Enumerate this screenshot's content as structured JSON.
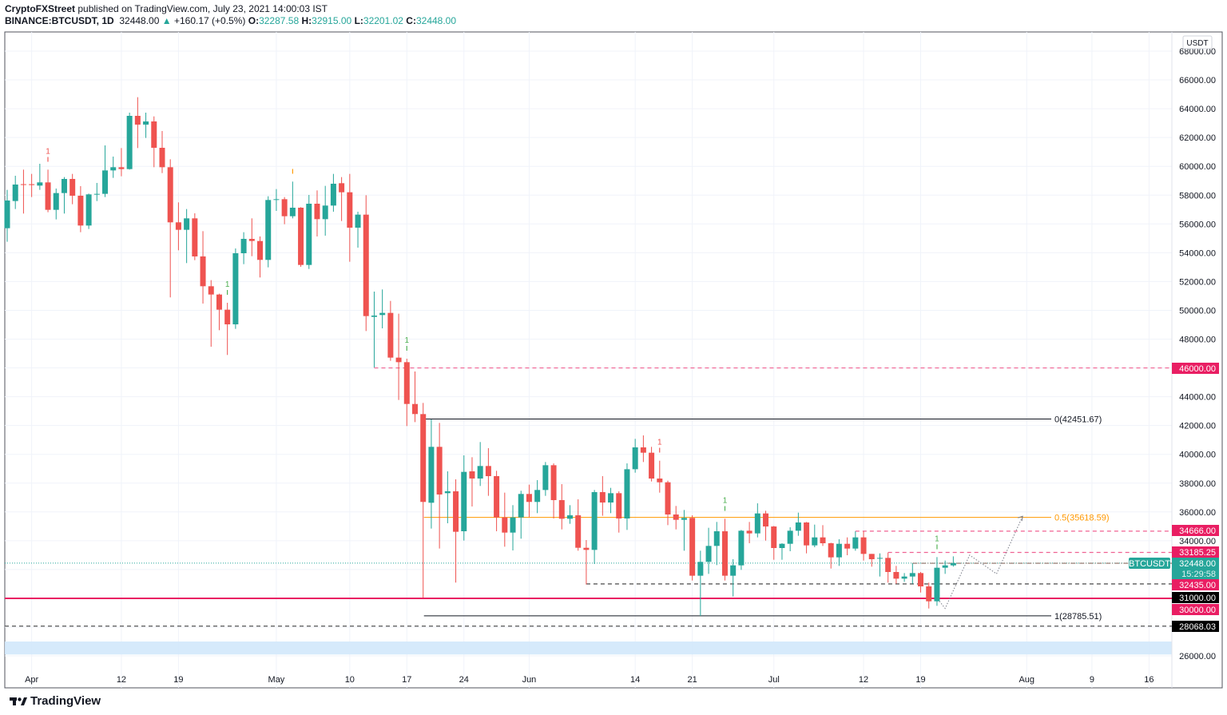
{
  "header": {
    "author": "CryptoFXStreet",
    "published": "published on TradingView.com, July 23, 2021 14:00:03 IST",
    "symbol": "BINANCE:BTCUSDT, 1D",
    "last": "32448.00",
    "change": "+160.17 (+0.5%)",
    "o_label": "O:",
    "o": "32287.58",
    "h_label": "H:",
    "h": "32915.00",
    "l_label": "L:",
    "l": "32201.02",
    "c_label": "C:",
    "c": "32448.00"
  },
  "footer": {
    "logo": "TradingView"
  },
  "colors": {
    "up": "#26a69a",
    "down": "#ef5350",
    "level": "#e91e63",
    "fib_mid": "#ff9800",
    "band": "#d1e8fb"
  },
  "chart_data": {
    "type": "candlestick",
    "currency": "USDT",
    "ylim": [
      25000,
      69000
    ],
    "y_ticks": [
      "68000.00",
      "66000.00",
      "64000.00",
      "62000.00",
      "60000.00",
      "58000.00",
      "56000.00",
      "54000.00",
      "52000.00",
      "50000.00",
      "48000.00",
      "44000.00",
      "42000.00",
      "40000.00",
      "38000.00",
      "36000.00",
      "34000.00",
      "26000.00"
    ],
    "x_ticks": [
      {
        "label": "Apr",
        "index": 3
      },
      {
        "label": "12",
        "index": 14
      },
      {
        "label": "19",
        "index": 21
      },
      {
        "label": "May",
        "index": 33
      },
      {
        "label": "10",
        "index": 42
      },
      {
        "label": "17",
        "index": 49
      },
      {
        "label": "24",
        "index": 56
      },
      {
        "label": "Jun",
        "index": 64
      },
      {
        "label": "14",
        "index": 77
      },
      {
        "label": "21",
        "index": 84
      },
      {
        "label": "Jul",
        "index": 94
      },
      {
        "label": "12",
        "index": 105
      },
      {
        "label": "19",
        "index": 112
      },
      {
        "label": "Aug",
        "index": 125
      },
      {
        "label": "9",
        "index": 133
      },
      {
        "label": "16",
        "index": 140
      }
    ],
    "candles_ohlc": [
      [
        55703,
        58366,
        54760,
        57627
      ],
      [
        57590,
        59346,
        57035,
        58736
      ],
      [
        58760,
        59771,
        56720,
        58720
      ],
      [
        58760,
        59475,
        57867,
        58700
      ],
      [
        58662,
        60178,
        58366,
        58884
      ],
      [
        58884,
        59771,
        56813,
        56979
      ],
      [
        56979,
        58458,
        56314,
        58144
      ],
      [
        58144,
        59254,
        56720,
        59124
      ],
      [
        59124,
        59475,
        57368,
        57959
      ],
      [
        57959,
        58625,
        55426,
        55888
      ],
      [
        55888,
        58107,
        55648,
        58052
      ],
      [
        58052,
        58847,
        57590,
        58089
      ],
      [
        58089,
        61454,
        57867,
        59716
      ],
      [
        59716,
        60677,
        59198,
        59938
      ],
      [
        59938,
        61269,
        59309,
        59808
      ],
      [
        59808,
        63728,
        59771,
        63506
      ],
      [
        63506,
        64801,
        61269,
        62896
      ],
      [
        62896,
        63728,
        61972,
        63118
      ],
      [
        63118,
        63469,
        59938,
        61287
      ],
      [
        61287,
        62452,
        59531,
        59938
      ],
      [
        59938,
        60492,
        50896,
        56110
      ],
      [
        56110,
        57497,
        54169,
        55592
      ],
      [
        55592,
        57034,
        53281,
        56387
      ],
      [
        56387,
        56738,
        53484,
        53743
      ],
      [
        53743,
        55499,
        50470,
        51672
      ],
      [
        51672,
        52097,
        47474,
        51098
      ],
      [
        51098,
        51154,
        48620,
        50044
      ],
      [
        50044,
        50525,
        46900,
        49027
      ],
      [
        49027,
        54297,
        48712,
        53964
      ],
      [
        53964,
        55425,
        53206,
        54963
      ],
      [
        54963,
        56387,
        53761,
        54815
      ],
      [
        54815,
        55129,
        52282,
        53502
      ],
      [
        53502,
        57922,
        52984,
        57663
      ],
      [
        57663,
        58421,
        56904,
        57718
      ],
      [
        57718,
        57866,
        55980,
        56535
      ],
      [
        56535,
        58939,
        56387,
        57127
      ],
      [
        57127,
        57164,
        53022,
        53151
      ],
      [
        53151,
        58014,
        52873,
        57404
      ],
      [
        57404,
        58328,
        55129,
        56331
      ],
      [
        56331,
        58643,
        55185,
        57275
      ],
      [
        57275,
        59475,
        56849,
        58791
      ],
      [
        58828,
        59253,
        56202,
        58199
      ],
      [
        58199,
        59475,
        53373,
        55740
      ],
      [
        55740,
        56849,
        54353,
        56646
      ],
      [
        56646,
        57996,
        48565,
        49600
      ],
      [
        49544,
        51301,
        46031,
        49637
      ],
      [
        49674,
        51449,
        48749,
        49822
      ],
      [
        49822,
        50654,
        46493,
        46715
      ],
      [
        46715,
        49766,
        43775,
        46400
      ],
      [
        46400,
        46641,
        41963,
        43497
      ],
      [
        43497,
        45753,
        42240,
        42795
      ],
      [
        42795,
        43571,
        30036,
        36693
      ],
      [
        36637,
        42425,
        34843,
        40520
      ],
      [
        40520,
        42185,
        33456,
        37210
      ],
      [
        37303,
        38819,
        35213,
        37432
      ],
      [
        37432,
        38264,
        31090,
        34621
      ],
      [
        34658,
        39929,
        34011,
        38782
      ],
      [
        38819,
        39799,
        36378,
        38320
      ],
      [
        38320,
        40853,
        37802,
        39189
      ],
      [
        39189,
        40428,
        37118,
        38486
      ],
      [
        38486,
        38856,
        34658,
        35620
      ],
      [
        35620,
        37340,
        33585,
        34565
      ],
      [
        34565,
        36471,
        33326,
        35620
      ],
      [
        35620,
        37470,
        34141,
        37248
      ],
      [
        37248,
        37895,
        35638,
        36693
      ],
      [
        36693,
        38209,
        35916,
        37525
      ],
      [
        37523,
        39465,
        37116,
        39243
      ],
      [
        39243,
        39370,
        35545,
        36820
      ],
      [
        36820,
        37930,
        34786,
        35526
      ],
      [
        35526,
        36469,
        35175,
        35766
      ],
      [
        35766,
        36876,
        33307,
        33510
      ],
      [
        33510,
        34047,
        30959,
        33363
      ],
      [
        33363,
        37523,
        32383,
        37375
      ],
      [
        37375,
        38485,
        35730,
        36654
      ],
      [
        36654,
        37671,
        35915,
        37301
      ],
      [
        37301,
        37430,
        34565,
        35545
      ],
      [
        35545,
        39372,
        34750,
        38965
      ],
      [
        38965,
        41073,
        38725,
        40482
      ],
      [
        40482,
        41314,
        39465,
        40112
      ],
      [
        40112,
        40519,
        38115,
        38318
      ],
      [
        38318,
        39557,
        37338,
        38059
      ],
      [
        38059,
        38170,
        35083,
        35822
      ],
      [
        35822,
        36414,
        34786,
        35452
      ],
      [
        35452,
        36136,
        33307,
        35582
      ],
      [
        35582,
        35766,
        31237,
        31570
      ],
      [
        31570,
        33307,
        28777,
        32531
      ],
      [
        32531,
        34898,
        31698,
        33640
      ],
      [
        33640,
        35305,
        32309,
        34657
      ],
      [
        34657,
        35526,
        31237,
        31570
      ],
      [
        31569,
        32715,
        30127,
        32290
      ],
      [
        32290,
        34749,
        31976,
        34694
      ],
      [
        34694,
        35304,
        33825,
        34509
      ],
      [
        34509,
        36598,
        34231,
        35896
      ],
      [
        35896,
        36080,
        34009,
        34989
      ],
      [
        34989,
        35026,
        32678,
        33492
      ],
      [
        33492,
        33825,
        32678,
        33787
      ],
      [
        33787,
        34934,
        33270,
        34694
      ],
      [
        34694,
        35951,
        34342,
        35267
      ],
      [
        35267,
        35304,
        33122,
        33677
      ],
      [
        33677,
        35119,
        33547,
        34231
      ],
      [
        34231,
        35082,
        33639,
        33825
      ],
      [
        33825,
        33862,
        32068,
        32845
      ],
      [
        32845,
        34102,
        32253,
        33787
      ],
      [
        33787,
        34232,
        32993,
        33455
      ],
      [
        33455,
        34657,
        33307,
        34232
      ],
      [
        34232,
        34657,
        32623,
        33085
      ],
      [
        33085,
        33085,
        32198,
        32716
      ],
      [
        32753,
        33122,
        31514,
        32808
      ],
      [
        32808,
        33178,
        31088,
        31828
      ],
      [
        31828,
        32253,
        31014,
        31366
      ],
      [
        31366,
        31754,
        31144,
        31514
      ],
      [
        31514,
        32438,
        31014,
        31754
      ],
      [
        31754,
        31828,
        30404,
        30829
      ],
      [
        30829,
        31088,
        29294,
        29794
      ],
      [
        29794,
        32864,
        29480,
        32124
      ],
      [
        32124,
        32623,
        31699,
        32287
      ],
      [
        32287.58,
        32915,
        32201.02,
        32448
      ]
    ],
    "sequential_counts": [
      {
        "index": 5,
        "label": "1",
        "color": "#ef5350"
      },
      {
        "index": 27,
        "label": "1",
        "color": "#4caf50"
      },
      {
        "index": 35,
        "label": "",
        "color": "#ff9800"
      },
      {
        "index": 49,
        "label": "1",
        "color": "#4caf50"
      },
      {
        "index": 80,
        "label": "1",
        "color": "#ef5350"
      },
      {
        "index": 88,
        "label": "1",
        "color": "#4caf50"
      },
      {
        "index": 114,
        "label": "1",
        "color": "#4caf50"
      }
    ],
    "levels": [
      {
        "price": 46000,
        "label": "46000.00",
        "style": "dashed",
        "color": "#f06292",
        "start": 45,
        "tag_bg": "#e91e63"
      },
      {
        "price": 34666,
        "label": "34666.00",
        "style": "dashed",
        "color": "#f06292",
        "start": 104,
        "tag_bg": "#e91e63"
      },
      {
        "price": 33185.25,
        "label": "33185.25",
        "style": "dashed",
        "color": "#f06292",
        "start": 108,
        "tag_bg": "#e91e63"
      },
      {
        "price": 32435,
        "label": "32435.00",
        "style": "dashdot",
        "color": "#8d6e63",
        "start": 111,
        "tag_bg": "#e91e63"
      },
      {
        "price": 31000,
        "label": "31000.00",
        "style": "dashed",
        "color": "#333333",
        "start": 71,
        "tag_bg": "#000000"
      },
      {
        "price": 30000,
        "label": "30000.00",
        "style": "solid",
        "color": "#e91e63",
        "start": -1,
        "tag_bg": "#e91e63"
      },
      {
        "price": 28068.03,
        "label": "28068.03",
        "style": "dashed",
        "color": "#555555",
        "start": -1,
        "tag_bg": "#000000"
      }
    ],
    "fib": [
      {
        "price": 42451.67,
        "label": "0(42451.67)",
        "color": "#131722"
      },
      {
        "price": 35618.59,
        "label": "0.5(35618.59)",
        "color": "#ff9800"
      },
      {
        "price": 28785.51,
        "label": "1(28785.51)",
        "color": "#131722"
      }
    ],
    "fib_start": 51,
    "fib_end": 127,
    "demand_zone": [
      26100,
      27000
    ],
    "current_price": {
      "symbol": "BTCUSDT",
      "price": "32448.00",
      "countdown": "15:29:58"
    },
    "projection": [
      [
        114.3,
        29800
      ],
      [
        115,
        29300
      ],
      [
        118,
        33000
      ],
      [
        121.3,
        31700
      ],
      [
        124.5,
        35700
      ]
    ]
  }
}
